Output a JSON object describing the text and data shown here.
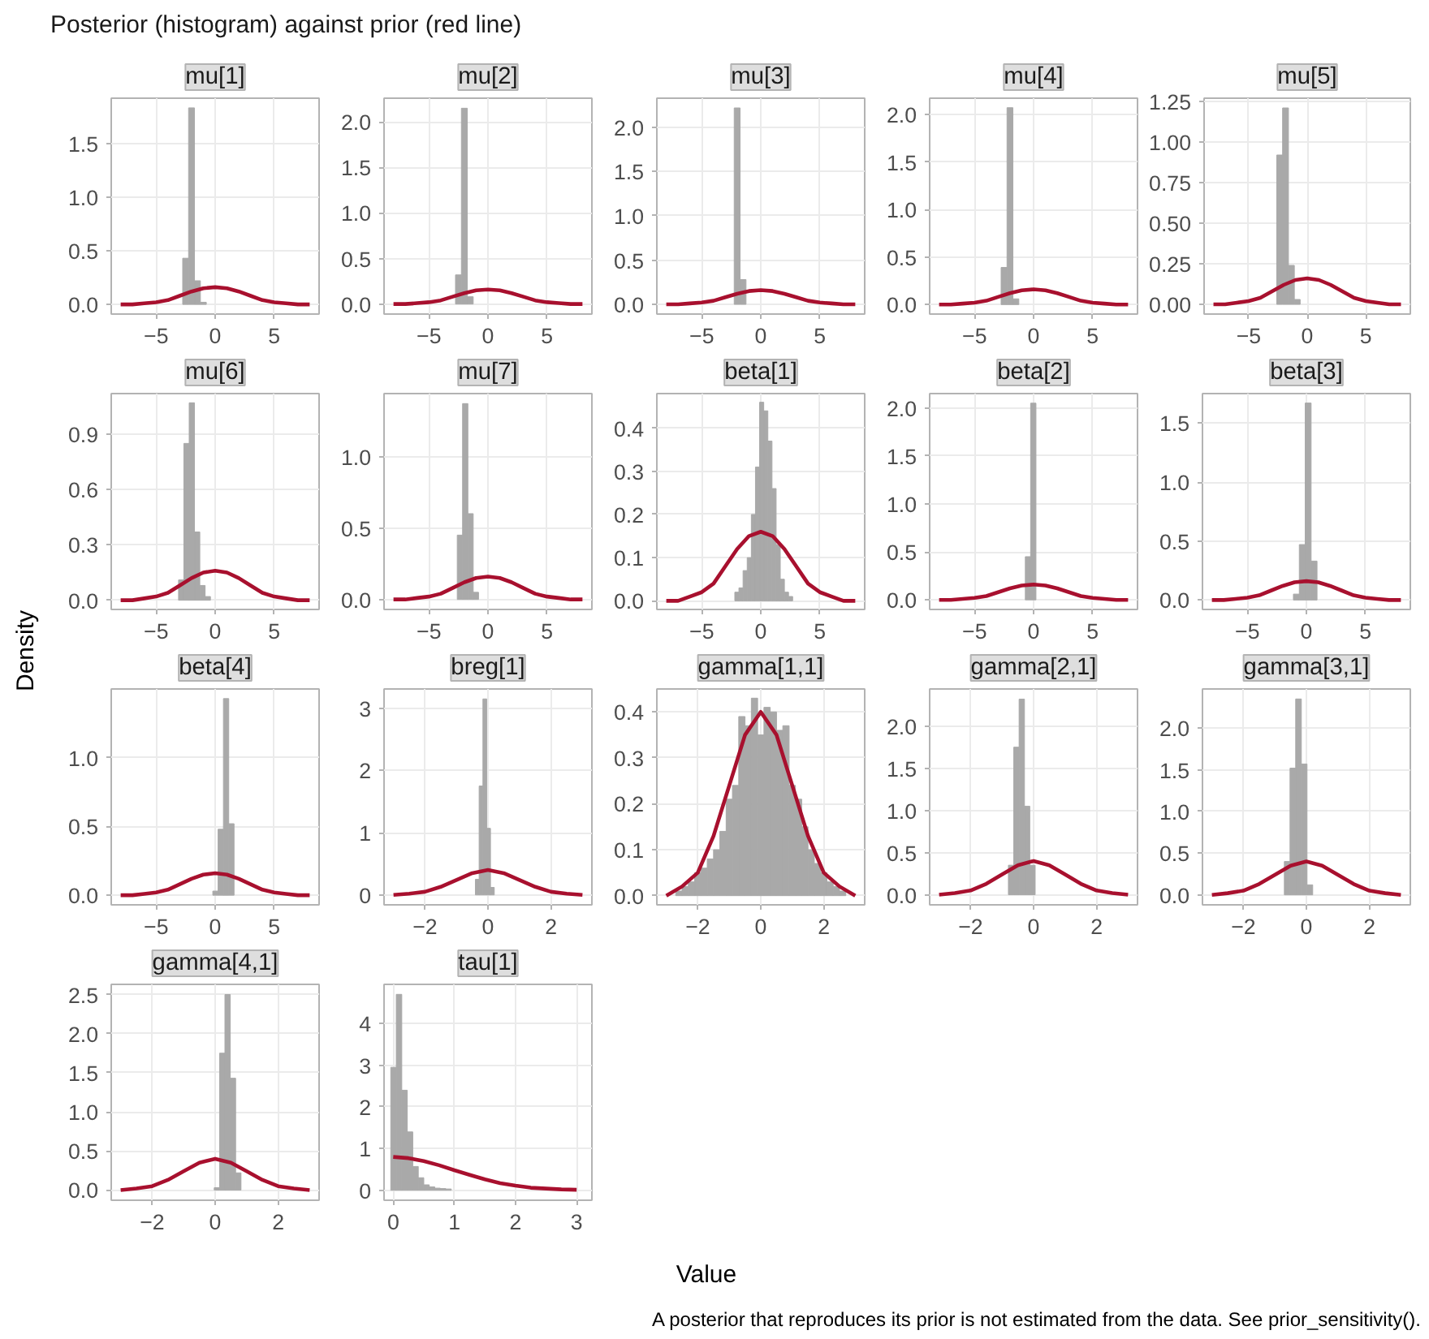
{
  "chart_data": [
    {
      "type": "histogram",
      "title": "mu[1]",
      "grid": true,
      "xlim": [
        -8.8,
        8.8
      ],
      "xticks": [
        -5,
        0,
        5
      ],
      "ylim": [
        -0.09,
        1.92
      ],
      "yticks": [
        {
          "value": 0,
          "label": "0.0"
        },
        0.5,
        {
          "value": 1,
          "label": "1.0"
        },
        1.5
      ],
      "series": [
        {
          "type": "histogram",
          "color": "#a9a9a9",
          "bins": [
            -2.75,
            -2.25,
            -1.75,
            -1.25,
            -0.75
          ],
          "values": [
            0.43,
            1.83,
            0.22,
            0.02
          ]
        },
        {
          "type": "line",
          "color": "#a8102e",
          "x": [
            -8,
            -7,
            -6,
            -5,
            -4,
            -3,
            -2,
            -1,
            0,
            1,
            2,
            3,
            4,
            5,
            6,
            7,
            8
          ],
          "values": [
            0,
            0,
            0.01,
            0.02,
            0.04,
            0.08,
            0.12,
            0.15,
            0.16,
            0.15,
            0.12,
            0.08,
            0.04,
            0.02,
            0.01,
            0,
            0
          ]
        }
      ]
    },
    {
      "type": "histogram",
      "title": "mu[2]",
      "grid": true,
      "xlim": [
        -8.8,
        8.8
      ],
      "xticks": [
        -5,
        0,
        5
      ],
      "ylim": [
        -0.11,
        2.26
      ],
      "yticks": [
        {
          "value": 0,
          "label": "0.0"
        },
        0.5,
        {
          "value": 1,
          "label": "1.0"
        },
        1.5,
        {
          "value": 2,
          "label": "2.0"
        }
      ],
      "series": [
        {
          "type": "histogram",
          "color": "#a9a9a9",
          "bins": [
            -2.75,
            -2.25,
            -1.75,
            -1.25
          ],
          "values": [
            0.32,
            2.15,
            0.08
          ]
        },
        {
          "type": "line",
          "color": "#a8102e",
          "x": [
            -8,
            -7,
            -6,
            -5,
            -4,
            -3,
            -2,
            -1,
            0,
            1,
            2,
            3,
            4,
            5,
            6,
            7,
            8
          ],
          "values": [
            0,
            0,
            0.01,
            0.02,
            0.04,
            0.08,
            0.12,
            0.15,
            0.16,
            0.15,
            0.12,
            0.08,
            0.04,
            0.02,
            0.01,
            0,
            0
          ]
        }
      ]
    },
    {
      "type": "histogram",
      "title": "mu[3]",
      "grid": true,
      "xlim": [
        -8.8,
        8.8
      ],
      "xticks": [
        -5,
        0,
        5
      ],
      "ylim": [
        -0.11,
        2.33
      ],
      "yticks": [
        {
          "value": 0,
          "label": "0.0"
        },
        0.5,
        {
          "value": 1,
          "label": "1.0"
        },
        1.5,
        {
          "value": 2,
          "label": "2.0"
        }
      ],
      "series": [
        {
          "type": "histogram",
          "color": "#a9a9a9",
          "bins": [
            -2.25,
            -1.75,
            -1.25
          ],
          "values": [
            2.22,
            0.28
          ]
        },
        {
          "type": "line",
          "color": "#a8102e",
          "x": [
            -8,
            -7,
            -6,
            -5,
            -4,
            -3,
            -2,
            -1,
            0,
            1,
            2,
            3,
            4,
            5,
            6,
            7,
            8
          ],
          "values": [
            0,
            0,
            0.01,
            0.02,
            0.04,
            0.08,
            0.12,
            0.15,
            0.16,
            0.15,
            0.12,
            0.08,
            0.04,
            0.02,
            0.01,
            0,
            0
          ]
        }
      ]
    },
    {
      "type": "histogram",
      "title": "mu[4]",
      "grid": true,
      "xlim": [
        -8.8,
        8.8
      ],
      "xticks": [
        -5,
        0,
        5
      ],
      "ylim": [
        -0.1,
        2.17
      ],
      "yticks": [
        {
          "value": 0,
          "label": "0.0"
        },
        0.5,
        {
          "value": 1,
          "label": "1.0"
        },
        1.5,
        {
          "value": 2,
          "label": "2.0"
        }
      ],
      "series": [
        {
          "type": "histogram",
          "color": "#a9a9a9",
          "bins": [
            -2.75,
            -2.25,
            -1.75,
            -1.25
          ],
          "values": [
            0.39,
            2.07,
            0.06
          ]
        },
        {
          "type": "line",
          "color": "#a8102e",
          "x": [
            -8,
            -7,
            -6,
            -5,
            -4,
            -3,
            -2,
            -1,
            0,
            1,
            2,
            3,
            4,
            5,
            6,
            7,
            8
          ],
          "values": [
            0,
            0,
            0.01,
            0.02,
            0.04,
            0.08,
            0.12,
            0.15,
            0.16,
            0.15,
            0.12,
            0.08,
            0.04,
            0.02,
            0.01,
            0,
            0
          ]
        }
      ]
    },
    {
      "type": "histogram",
      "title": "mu[5]",
      "grid": true,
      "xlim": [
        -8.8,
        8.8
      ],
      "xticks": [
        -5,
        0,
        5
      ],
      "ylim": [
        -0.06,
        1.27
      ],
      "yticks": [
        {
          "value": 0,
          "label": "0.00"
        },
        0.25,
        {
          "value": 0.5,
          "label": "0.50"
        },
        0.75,
        {
          "value": 1,
          "label": "1.00"
        },
        1.25
      ],
      "series": [
        {
          "type": "histogram",
          "color": "#a9a9a9",
          "bins": [
            -2.6,
            -2.1,
            -1.6,
            -1.1,
            -0.6
          ],
          "values": [
            0.92,
            1.21,
            0.24,
            0.03
          ]
        },
        {
          "type": "line",
          "color": "#a8102e",
          "x": [
            -8,
            -7,
            -6,
            -5,
            -4,
            -3,
            -2,
            -1,
            0,
            1,
            2,
            3,
            4,
            5,
            6,
            7,
            8
          ],
          "values": [
            0,
            0,
            0.01,
            0.02,
            0.04,
            0.08,
            0.12,
            0.15,
            0.16,
            0.15,
            0.12,
            0.08,
            0.04,
            0.02,
            0.01,
            0,
            0
          ]
        }
      ]
    },
    {
      "type": "histogram",
      "title": "mu[6]",
      "grid": true,
      "xlim": [
        -8.8,
        8.8
      ],
      "xticks": [
        -5,
        0,
        5
      ],
      "ylim": [
        -0.05,
        1.12
      ],
      "yticks": [
        {
          "value": 0,
          "label": "0.0"
        },
        0.3,
        0.6,
        0.9
      ],
      "series": [
        {
          "type": "histogram",
          "color": "#a9a9a9",
          "bins": [
            -3.1,
            -2.65,
            -2.2,
            -1.75,
            -1.3,
            -0.85,
            -0.4
          ],
          "values": [
            0.11,
            0.85,
            1.07,
            0.37,
            0.08,
            0.02
          ]
        },
        {
          "type": "line",
          "color": "#a8102e",
          "x": [
            -8,
            -7,
            -6,
            -5,
            -4,
            -3,
            -2,
            -1,
            0,
            1,
            2,
            3,
            4,
            5,
            6,
            7,
            8
          ],
          "values": [
            0,
            0,
            0.01,
            0.02,
            0.04,
            0.08,
            0.12,
            0.15,
            0.16,
            0.15,
            0.12,
            0.08,
            0.04,
            0.02,
            0.01,
            0,
            0
          ]
        }
      ]
    },
    {
      "type": "histogram",
      "title": "mu[7]",
      "grid": true,
      "xlim": [
        -8.8,
        8.8
      ],
      "xticks": [
        -5,
        0,
        5
      ],
      "ylim": [
        -0.07,
        1.44
      ],
      "yticks": [
        {
          "value": 0,
          "label": "0.0"
        },
        0.5,
        {
          "value": 1,
          "label": "1.0"
        }
      ],
      "series": [
        {
          "type": "histogram",
          "color": "#a9a9a9",
          "bins": [
            -2.6,
            -2.15,
            -1.7,
            -1.25,
            -0.8
          ],
          "values": [
            0.45,
            1.37,
            0.6,
            0.05
          ]
        },
        {
          "type": "line",
          "color": "#a8102e",
          "x": [
            -8,
            -7,
            -6,
            -5,
            -4,
            -3,
            -2,
            -1,
            0,
            1,
            2,
            3,
            4,
            5,
            6,
            7,
            8
          ],
          "values": [
            0,
            0,
            0.01,
            0.02,
            0.04,
            0.08,
            0.12,
            0.15,
            0.16,
            0.15,
            0.12,
            0.08,
            0.04,
            0.02,
            0.01,
            0,
            0
          ]
        }
      ]
    },
    {
      "type": "histogram",
      "title": "beta[1]",
      "grid": true,
      "xlim": [
        -8.8,
        8.8
      ],
      "xticks": [
        -5,
        0,
        5
      ],
      "ylim": [
        -0.02,
        0.48
      ],
      "yticks": [
        {
          "value": 0,
          "label": "0.0"
        },
        0.1,
        0.2,
        0.3,
        0.4
      ],
      "series": [
        {
          "type": "histogram",
          "color": "#a9a9a9",
          "bins": [
            -2.2,
            -1.85,
            -1.5,
            -1.15,
            -0.8,
            -0.45,
            -0.1,
            0.25,
            0.6,
            0.95,
            1.3,
            1.65,
            2.0,
            2.35,
            2.7
          ],
          "values": [
            0.02,
            0.03,
            0.07,
            0.1,
            0.2,
            0.31,
            0.46,
            0.44,
            0.37,
            0.26,
            0.13,
            0.05,
            0.02,
            0.01
          ]
        },
        {
          "type": "line",
          "color": "#a8102e",
          "x": [
            -8,
            -7,
            -6,
            -5,
            -4,
            -3,
            -2,
            -1,
            0,
            1,
            2,
            3,
            4,
            5,
            6,
            7,
            8
          ],
          "values": [
            0,
            0,
            0.01,
            0.02,
            0.04,
            0.08,
            0.12,
            0.15,
            0.16,
            0.15,
            0.12,
            0.08,
            0.04,
            0.02,
            0.01,
            0,
            0
          ]
        }
      ]
    },
    {
      "type": "histogram",
      "title": "beta[2]",
      "grid": true,
      "xlim": [
        -8.8,
        8.8
      ],
      "xticks": [
        -5,
        0,
        5
      ],
      "ylim": [
        -0.1,
        2.15
      ],
      "yticks": [
        {
          "value": 0,
          "label": "0.0"
        },
        0.5,
        {
          "value": 1,
          "label": "1.0"
        },
        1.5,
        {
          "value": 2,
          "label": "2.0"
        }
      ],
      "series": [
        {
          "type": "histogram",
          "color": "#a9a9a9",
          "bins": [
            -0.7,
            -0.25,
            0.2
          ],
          "values": [
            0.45,
            2.05
          ]
        },
        {
          "type": "line",
          "color": "#a8102e",
          "x": [
            -8,
            -7,
            -6,
            -5,
            -4,
            -3,
            -2,
            -1,
            0,
            1,
            2,
            3,
            4,
            5,
            6,
            7,
            8
          ],
          "values": [
            0,
            0,
            0.01,
            0.02,
            0.04,
            0.08,
            0.12,
            0.15,
            0.16,
            0.15,
            0.12,
            0.08,
            0.04,
            0.02,
            0.01,
            0,
            0
          ]
        }
      ]
    },
    {
      "type": "histogram",
      "title": "beta[3]",
      "grid": true,
      "xlim": [
        -8.8,
        8.8
      ],
      "xticks": [
        -5,
        0,
        5
      ],
      "ylim": [
        -0.08,
        1.75
      ],
      "yticks": [
        {
          "value": 0,
          "label": "0.0"
        },
        0.5,
        {
          "value": 1,
          "label": "1.0"
        },
        1.5
      ],
      "series": [
        {
          "type": "histogram",
          "color": "#a9a9a9",
          "bins": [
            -1.1,
            -0.6,
            -0.1,
            0.4,
            0.9
          ],
          "values": [
            0.05,
            0.47,
            1.67,
            0.33
          ]
        },
        {
          "type": "line",
          "color": "#a8102e",
          "x": [
            -8,
            -7,
            -6,
            -5,
            -4,
            -3,
            -2,
            -1,
            0,
            1,
            2,
            3,
            4,
            5,
            6,
            7,
            8
          ],
          "values": [
            0,
            0,
            0.01,
            0.02,
            0.04,
            0.08,
            0.12,
            0.15,
            0.16,
            0.15,
            0.12,
            0.08,
            0.04,
            0.02,
            0.01,
            0,
            0
          ]
        }
      ]
    },
    {
      "type": "histogram",
      "title": "beta[4]",
      "grid": true,
      "xlim": [
        -8.8,
        8.8
      ],
      "xticks": [
        -5,
        0,
        5
      ],
      "ylim": [
        -0.07,
        1.5
      ],
      "yticks": [
        {
          "value": 0,
          "label": "0.0"
        },
        0.5,
        {
          "value": 1,
          "label": "1.0"
        }
      ],
      "series": [
        {
          "type": "histogram",
          "color": "#a9a9a9",
          "bins": [
            -0.2,
            0.25,
            0.7,
            1.15,
            1.6
          ],
          "values": [
            0.03,
            0.48,
            1.43,
            0.52
          ]
        },
        {
          "type": "line",
          "color": "#a8102e",
          "x": [
            -8,
            -7,
            -6,
            -5,
            -4,
            -3,
            -2,
            -1,
            0,
            1,
            2,
            3,
            4,
            5,
            6,
            7,
            8
          ],
          "values": [
            0,
            0,
            0.01,
            0.02,
            0.04,
            0.08,
            0.12,
            0.15,
            0.16,
            0.15,
            0.12,
            0.08,
            0.04,
            0.02,
            0.01,
            0,
            0
          ]
        }
      ]
    },
    {
      "type": "histogram",
      "title": "breg[1]",
      "grid": true,
      "xlim": [
        -3.3,
        3.3
      ],
      "xticks": [
        -2,
        0,
        2
      ],
      "ylim": [
        -0.16,
        3.31
      ],
      "yticks": [
        0,
        1,
        2,
        3
      ],
      "series": [
        {
          "type": "histogram",
          "color": "#a9a9a9",
          "bins": [
            -0.4,
            -0.28,
            -0.16,
            -0.04,
            0.08,
            0.2
          ],
          "values": [
            0.25,
            1.75,
            3.15,
            1.07,
            0.12
          ]
        },
        {
          "type": "line",
          "color": "#a8102e",
          "x": [
            -3,
            -2.5,
            -2,
            -1.5,
            -1,
            -0.5,
            0,
            0.5,
            1,
            1.5,
            2,
            2.5,
            3
          ],
          "values": [
            0,
            0.02,
            0.05,
            0.13,
            0.24,
            0.35,
            0.4,
            0.35,
            0.24,
            0.13,
            0.05,
            0.02,
            0
          ]
        }
      ]
    },
    {
      "type": "histogram",
      "title": "gamma[1,1]",
      "grid": true,
      "xlim": [
        -3.3,
        3.3
      ],
      "xticks": [
        -2,
        0,
        2
      ],
      "ylim": [
        -0.02,
        0.45
      ],
      "yticks": [
        {
          "value": 0,
          "label": "0.0"
        },
        0.1,
        0.2,
        0.3,
        0.4
      ],
      "series": [
        {
          "type": "histogram",
          "color": "#a9a9a9",
          "bins": [
            -2.7,
            -2.5,
            -2.3,
            -2.1,
            -1.9,
            -1.7,
            -1.5,
            -1.3,
            -1.1,
            -0.9,
            -0.7,
            -0.5,
            -0.3,
            -0.1,
            0.1,
            0.3,
            0.5,
            0.7,
            0.9,
            1.1,
            1.3,
            1.5,
            1.7,
            1.9,
            2.1,
            2.3,
            2.5,
            2.7
          ],
          "values": [
            0.01,
            0.02,
            0.03,
            0.05,
            0.06,
            0.08,
            0.1,
            0.14,
            0.21,
            0.24,
            0.39,
            0.37,
            0.43,
            0.35,
            0.41,
            0.4,
            0.36,
            0.37,
            0.24,
            0.21,
            0.15,
            0.1,
            0.07,
            0.05,
            0.03,
            0.02,
            0.01
          ]
        },
        {
          "type": "line",
          "color": "#a8102e",
          "x": [
            -3,
            -2.5,
            -2,
            -1.5,
            -1,
            -0.5,
            0,
            0.5,
            1,
            1.5,
            2,
            2.5,
            3
          ],
          "values": [
            0,
            0.02,
            0.05,
            0.13,
            0.24,
            0.35,
            0.4,
            0.35,
            0.24,
            0.13,
            0.05,
            0.02,
            0
          ]
        }
      ]
    },
    {
      "type": "histogram",
      "title": "gamma[2,1]",
      "grid": true,
      "xlim": [
        -3.3,
        3.3
      ],
      "xticks": [
        -2,
        0,
        2
      ],
      "ylim": [
        -0.12,
        2.44
      ],
      "yticks": [
        {
          "value": 0,
          "label": "0.0"
        },
        0.5,
        {
          "value": 1,
          "label": "1.0"
        },
        1.5,
        {
          "value": 2,
          "label": "2.0"
        }
      ],
      "series": [
        {
          "type": "histogram",
          "color": "#a9a9a9",
          "bins": [
            -0.8,
            -0.63,
            -0.46,
            -0.29,
            -0.12,
            0.05
          ],
          "values": [
            0.35,
            1.75,
            2.32,
            1.05,
            0.35
          ]
        },
        {
          "type": "line",
          "color": "#a8102e",
          "x": [
            -3,
            -2.5,
            -2,
            -1.5,
            -1,
            -0.5,
            0,
            0.5,
            1,
            1.5,
            2,
            2.5,
            3
          ],
          "values": [
            0,
            0.02,
            0.05,
            0.13,
            0.24,
            0.35,
            0.4,
            0.35,
            0.24,
            0.13,
            0.05,
            0.02,
            0
          ]
        }
      ]
    },
    {
      "type": "histogram",
      "title": "gamma[3,1]",
      "grid": true,
      "xlim": [
        -3.3,
        3.3
      ],
      "xticks": [
        -2,
        0,
        2
      ],
      "ylim": [
        -0.12,
        2.47
      ],
      "yticks": [
        {
          "value": 0,
          "label": "0.0"
        },
        0.5,
        {
          "value": 1,
          "label": "1.0"
        },
        1.5,
        {
          "value": 2,
          "label": "2.0"
        }
      ],
      "series": [
        {
          "type": "histogram",
          "color": "#a9a9a9",
          "bins": [
            -0.7,
            -0.52,
            -0.34,
            -0.16,
            0.02,
            0.2
          ],
          "values": [
            0.4,
            1.52,
            2.35,
            1.57,
            0.12
          ]
        },
        {
          "type": "line",
          "color": "#a8102e",
          "x": [
            -3,
            -2.5,
            -2,
            -1.5,
            -1,
            -0.5,
            0,
            0.5,
            1,
            1.5,
            2,
            2.5,
            3
          ],
          "values": [
            0,
            0.02,
            0.05,
            0.13,
            0.24,
            0.35,
            0.4,
            0.35,
            0.24,
            0.13,
            0.05,
            0.02,
            0
          ]
        }
      ]
    },
    {
      "type": "histogram",
      "title": "gamma[4,1]",
      "grid": true,
      "xlim": [
        -3.3,
        3.3
      ],
      "xticks": [
        -2,
        0,
        2
      ],
      "ylim": [
        -0.13,
        2.63
      ],
      "yticks": [
        {
          "value": 0,
          "label": "0.0"
        },
        0.5,
        {
          "value": 1,
          "label": "1.0"
        },
        1.5,
        {
          "value": 2,
          "label": "2.0"
        },
        2.5
      ],
      "series": [
        {
          "type": "histogram",
          "color": "#a9a9a9",
          "bins": [
            -0.03,
            0.14,
            0.31,
            0.48,
            0.65,
            0.82
          ],
          "values": [
            0.03,
            1.75,
            2.5,
            1.43,
            0.22
          ]
        },
        {
          "type": "line",
          "color": "#a8102e",
          "x": [
            -3,
            -2.5,
            -2,
            -1.5,
            -1,
            -0.5,
            0,
            0.5,
            1,
            1.5,
            2,
            2.5,
            3
          ],
          "values": [
            0,
            0.02,
            0.05,
            0.13,
            0.24,
            0.35,
            0.4,
            0.35,
            0.24,
            0.13,
            0.05,
            0.02,
            0
          ]
        }
      ]
    },
    {
      "type": "histogram",
      "title": "tau[1]",
      "grid": true,
      "xlim": [
        -0.15,
        3.25
      ],
      "xticks": [
        0,
        1,
        2,
        3
      ],
      "ylim": [
        -0.24,
        4.94
      ],
      "yticks": [
        0,
        1,
        2,
        3,
        4
      ],
      "series": [
        {
          "type": "histogram",
          "color": "#a9a9a9",
          "bins": [
            -0.04,
            0.05,
            0.14,
            0.23,
            0.32,
            0.41,
            0.5,
            0.59,
            0.68,
            0.77,
            0.86,
            0.95
          ],
          "values": [
            2.95,
            4.7,
            2.4,
            1.4,
            0.57,
            0.3,
            0.13,
            0.08,
            0.05,
            0.04,
            0.03
          ]
        },
        {
          "type": "line",
          "color": "#a8102e",
          "x": [
            0,
            0.25,
            0.5,
            0.75,
            1,
            1.25,
            1.5,
            1.75,
            2,
            2.25,
            2.5,
            2.75,
            3
          ],
          "values": [
            0.8,
            0.77,
            0.7,
            0.6,
            0.48,
            0.37,
            0.26,
            0.17,
            0.11,
            0.06,
            0.04,
            0.02,
            0.01
          ]
        }
      ]
    },
    {
      "type": "other",
      "title": "Posterior (histogram) against prior (red line)",
      "xlabel": "Value",
      "ylabel": "Density",
      "annotations": [
        "A posterior that reproduces its prior is not estimated from the data. See prior_sensitivity()."
      ]
    }
  ]
}
